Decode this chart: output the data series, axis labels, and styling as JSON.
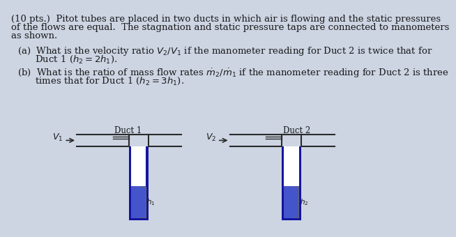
{
  "bg_color": "#cdd5e3",
  "text_color": "#1a1a1a",
  "line_color": "#2a2a2a",
  "dark_blue": "#1414a0",
  "mid_blue": "#3333bb",
  "fluid_blue": "#4455cc",
  "duct1_label": "Duct 1",
  "duct2_label": "Duct 2",
  "v1_label": "$V_1$",
  "v2_label": "$V_2$",
  "h1_label": "$h_1$",
  "h2_label": "$h_2$",
  "title_line1": "(10 pts.)  Pitot tubes are placed in two ducts in which air is flowing and the static pressures",
  "title_line2": "of the flows are equal.  The stagnation and static pressure taps are connected to manometers",
  "title_line3": "as shown.",
  "parta_line1": "(a)  What is the velocity ratio $V_2/V_1$ if the manometer reading for Duct 2 is twice that for",
  "parta_line2": "      Duct 1 ($h_2 = 2h_1$).",
  "partb_line1": "(b)  What is the ratio of mass flow rates $\\dot{m}_2/\\dot{m}_1$ if the manometer reading for Duct 2 is three",
  "partb_line2": "      times that for Duct 1 ($h_2 = 3h_1$)."
}
